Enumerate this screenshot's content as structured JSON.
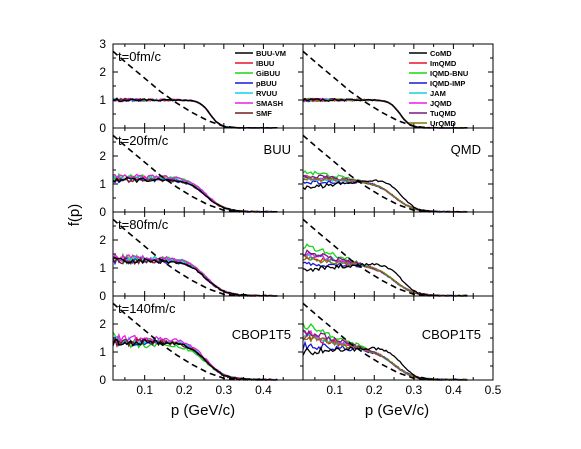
{
  "chart_data": {
    "type": "line",
    "xlabel": "p (GeV/c)",
    "ylabel": "f(p)",
    "xlim": [
      0.02,
      0.5
    ],
    "ylim": [
      0,
      3
    ],
    "grid": false,
    "x_tick_labels": [
      "0.1",
      "0.2",
      "0.3",
      "0.4",
      "0.5"
    ],
    "y_tick_labels": [
      "0",
      "1",
      "2",
      "3"
    ],
    "columns": [
      {
        "label": "BUU",
        "legend": [
          {
            "name": "BUU-VM",
            "color": "#000000"
          },
          {
            "name": "IBUU",
            "color": "#e8102a"
          },
          {
            "name": "GiBUU",
            "color": "#17d517"
          },
          {
            "name": "pBUU",
            "color": "#1919d8"
          },
          {
            "name": "RVUU",
            "color": "#15d1e3"
          },
          {
            "name": "SMASH",
            "color": "#e81ee8"
          },
          {
            "name": "SMF",
            "color": "#7a1a24"
          }
        ]
      },
      {
        "label": "QMD",
        "legend": [
          {
            "name": "CoMD",
            "color": "#000000"
          },
          {
            "name": "ImQMD",
            "color": "#e8102a"
          },
          {
            "name": "IQMD-BNU",
            "color": "#17d517"
          },
          {
            "name": "IQMD-IMP",
            "color": "#1919d8"
          },
          {
            "name": "JAM",
            "color": "#15d1e3"
          },
          {
            "name": "JQMD",
            "color": "#e81ee8"
          },
          {
            "name": "TuQMD",
            "color": "#7a1a7a"
          },
          {
            "name": "UrQMD",
            "color": "#7a7a10"
          }
        ]
      }
    ],
    "rows": [
      {
        "time": "t=0fm/c",
        "left_label": "",
        "right_label": ""
      },
      {
        "time": "t=20fm/c",
        "left_label": "BUU",
        "right_label": "QMD"
      },
      {
        "time": "t=80fm/c",
        "left_label": "",
        "right_label": ""
      },
      {
        "time": "t=140fm/c",
        "left_label": "CBOP1T5",
        "right_label": "CBOP1T5"
      }
    ],
    "reference_curve": {
      "style": "dashed",
      "color": "#000000",
      "x": [
        0.02,
        0.06,
        0.1,
        0.14,
        0.18,
        0.22,
        0.26,
        0.3,
        0.34
      ],
      "y": [
        2.74,
        2.25,
        1.78,
        1.3,
        0.9,
        0.55,
        0.26,
        0.06,
        0.0
      ]
    }
  }
}
